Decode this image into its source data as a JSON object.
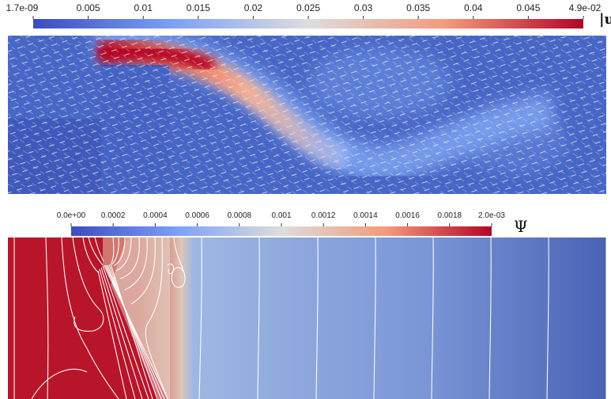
{
  "top_colorbar": {
    "ticks": [
      "1.7e-09",
      "0.005",
      "0.01",
      "0.015",
      "0.02",
      "0.025",
      "0.03",
      "0.035",
      "0.04",
      "0.045",
      "4.9e-02"
    ],
    "range": [
      1.7e-09,
      0.049
    ],
    "field_label": "|u",
    "colors": [
      "#3b4cc0",
      "#dddddd",
      "#b40426"
    ]
  },
  "bottom_colorbar": {
    "ticks": [
      "0.0e+00",
      "0.0002",
      "0.0004",
      "0.0006",
      "0.0008",
      "0.001",
      "0.0012",
      "0.0014",
      "0.0016",
      "0.0018",
      "2.0e-03"
    ],
    "range": [
      0.0,
      0.002
    ],
    "field_label": "Ψ",
    "colors": [
      "#3b4cc0",
      "#dddddd",
      "#b40426"
    ]
  }
}
